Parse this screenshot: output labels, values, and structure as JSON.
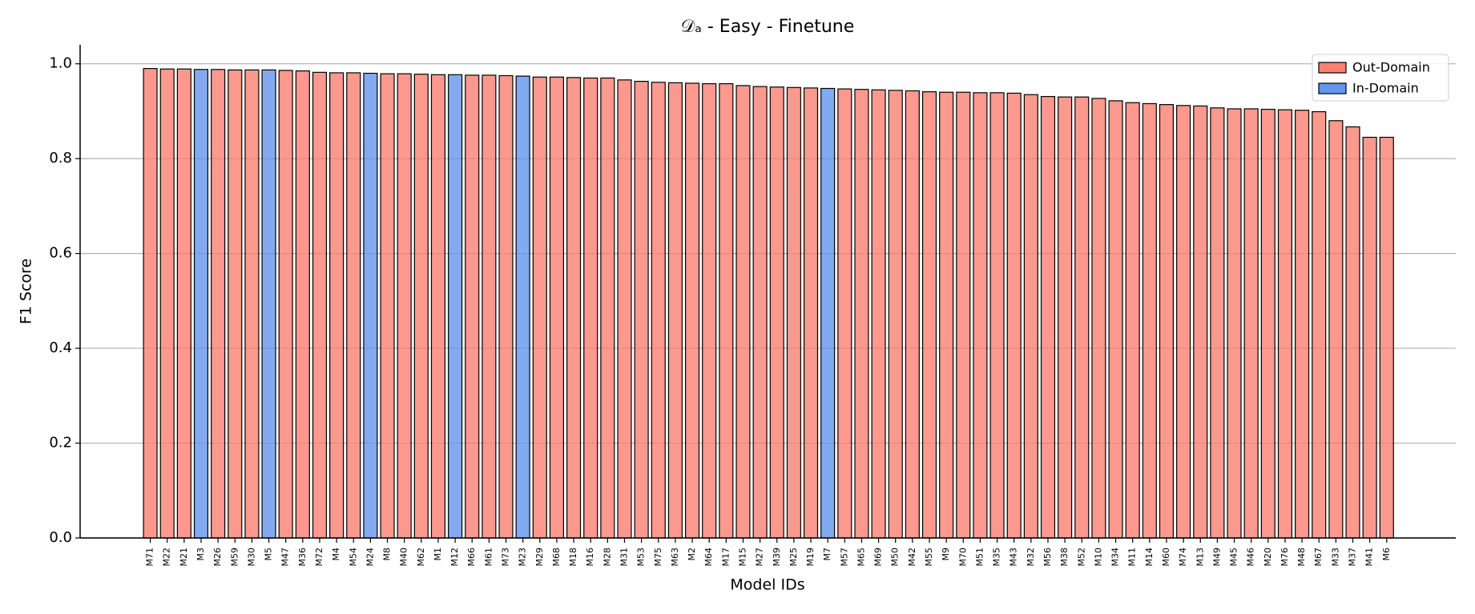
{
  "chart_data": {
    "type": "bar",
    "title": "𝒟ₐ - Easy - Finetune",
    "x_label": "Model IDs",
    "y_label": "F1 Score",
    "categories": [
      "M71",
      "M22",
      "M21",
      "M3",
      "M26",
      "M59",
      "M30",
      "M5",
      "M47",
      "M36",
      "M72",
      "M4",
      "M54",
      "M24",
      "M8",
      "M40",
      "M62",
      "M1",
      "M12",
      "M66",
      "M61",
      "M73",
      "M23",
      "M29",
      "M68",
      "M18",
      "M16",
      "M28",
      "M31",
      "M53",
      "M75",
      "M63",
      "M2",
      "M64",
      "M17",
      "M15",
      "M27",
      "M39",
      "M25",
      "M19",
      "M7",
      "M57",
      "M65",
      "M69",
      "M50",
      "M42",
      "M55",
      "M9",
      "M70",
      "M51",
      "M35",
      "M43",
      "M32",
      "M56",
      "M38",
      "M52",
      "M10",
      "M34",
      "M11",
      "M14",
      "M60",
      "M74",
      "M13",
      "M49",
      "M45",
      "M46",
      "M20",
      "M76",
      "M48",
      "M67",
      "M33",
      "M37",
      "M41",
      "M6"
    ],
    "series": [
      {
        "name": "Out-Domain",
        "color": "#fa8072",
        "values": [
          0.99,
          0.989,
          0.989,
          null,
          0.988,
          0.987,
          0.987,
          null,
          0.986,
          0.985,
          0.982,
          0.981,
          0.981,
          null,
          0.979,
          0.979,
          0.978,
          0.977,
          null,
          0.976,
          0.976,
          0.975,
          null,
          0.972,
          0.972,
          0.971,
          0.97,
          0.97,
          0.966,
          0.963,
          0.961,
          0.96,
          0.959,
          0.958,
          0.958,
          0.954,
          0.952,
          0.951,
          0.95,
          0.949,
          null,
          0.947,
          0.946,
          0.945,
          0.944,
          0.943,
          0.941,
          0.94,
          0.94,
          0.939,
          0.939,
          0.938,
          0.935,
          0.931,
          0.93,
          0.93,
          0.927,
          0.922,
          0.918,
          0.916,
          0.914,
          0.912,
          0.911,
          0.907,
          0.905,
          0.905,
          0.904,
          0.903,
          0.902,
          0.899,
          0.88,
          0.867,
          0.845,
          0.845
        ]
      },
      {
        "name": "In-Domain",
        "color": "#6495ed",
        "values": [
          null,
          null,
          null,
          0.988,
          null,
          null,
          null,
          0.987,
          null,
          null,
          null,
          null,
          null,
          0.98,
          null,
          null,
          null,
          null,
          0.977,
          null,
          null,
          null,
          0.974,
          null,
          null,
          null,
          null,
          null,
          null,
          null,
          null,
          null,
          null,
          null,
          null,
          null,
          null,
          null,
          null,
          null,
          0.948,
          null,
          null,
          null,
          null,
          null,
          null,
          null,
          null,
          null,
          null,
          null,
          null,
          null,
          null,
          null,
          null,
          null,
          null,
          null,
          null,
          null,
          null,
          null,
          null,
          null,
          null,
          null,
          null,
          null,
          null,
          null,
          null,
          null
        ]
      }
    ],
    "ylim": [
      0,
      1.04
    ],
    "yticks": [
      {
        "value": 0,
        "label": "0.0"
      },
      0.2,
      0.4,
      0.6,
      0.8,
      {
        "value": 1,
        "label": "1.0"
      }
    ],
    "grid": true,
    "legend": "upper right"
  }
}
